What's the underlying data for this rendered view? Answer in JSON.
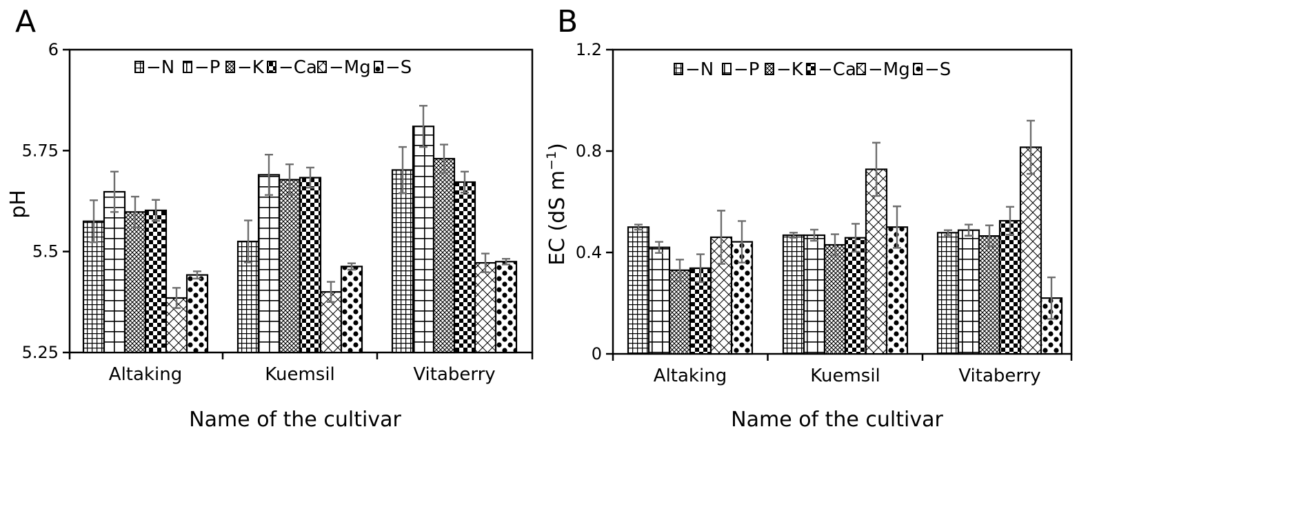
{
  "chart_data": [
    {
      "panel": "A",
      "type": "bar",
      "title": "",
      "xlabel": "Name of the cultivar",
      "ylabel": "pH",
      "ylim": [
        5.25,
        6
      ],
      "yticks": [
        "5.25",
        "5.5",
        "5.75",
        "6"
      ],
      "categories": [
        "Altaking",
        "Kuemsil",
        "Vitaberry"
      ],
      "legend_position": "top",
      "series": [
        {
          "name": "−N",
          "values": [
            5.575,
            5.525,
            5.702
          ],
          "errors": [
            0.052,
            0.052,
            0.057
          ]
        },
        {
          "name": "−P",
          "values": [
            5.648,
            5.69,
            5.81
          ],
          "errors": [
            0.05,
            0.05,
            0.051
          ]
        },
        {
          "name": "−K",
          "values": [
            5.598,
            5.678,
            5.73
          ],
          "errors": [
            0.038,
            0.038,
            0.035
          ]
        },
        {
          "name": "−Ca",
          "values": [
            5.602,
            5.683,
            5.672
          ],
          "errors": [
            0.026,
            0.025,
            0.026
          ]
        },
        {
          "name": "−Mg",
          "values": [
            5.385,
            5.4,
            5.472
          ],
          "errors": [
            0.025,
            0.025,
            0.023
          ]
        },
        {
          "name": "−S",
          "values": [
            5.442,
            5.463,
            5.475
          ],
          "errors": [
            0.009,
            0.008,
            0.007
          ]
        }
      ]
    },
    {
      "panel": "B",
      "type": "bar",
      "title": "",
      "xlabel": "Name of the cultivar",
      "ylabel": "EC (dS m",
      "ylabel_superscript": "−1",
      "ylabel_suffix": ")",
      "ylim": [
        0,
        1.2
      ],
      "yticks": [
        "0",
        "0.4",
        "0.8",
        "1.2"
      ],
      "categories": [
        "Altaking",
        "Kuemsil",
        "Vitaberry"
      ],
      "legend_position": "top",
      "series": [
        {
          "name": "−N",
          "values": [
            0.5,
            0.468,
            0.478
          ],
          "errors": [
            0.01,
            0.01,
            0.01
          ]
        },
        {
          "name": "−P",
          "values": [
            0.42,
            0.468,
            0.488
          ],
          "errors": [
            0.022,
            0.022,
            0.022
          ]
        },
        {
          "name": "−K",
          "values": [
            0.33,
            0.43,
            0.465
          ],
          "errors": [
            0.042,
            0.042,
            0.042
          ]
        },
        {
          "name": "−Ca",
          "values": [
            0.338,
            0.458,
            0.525
          ],
          "errors": [
            0.055,
            0.055,
            0.055
          ]
        },
        {
          "name": "−Mg",
          "values": [
            0.46,
            0.728,
            0.815
          ],
          "errors": [
            0.105,
            0.105,
            0.105
          ]
        },
        {
          "name": "−S",
          "values": [
            0.442,
            0.5,
            0.22
          ],
          "errors": [
            0.082,
            0.082,
            0.082
          ]
        }
      ]
    }
  ]
}
